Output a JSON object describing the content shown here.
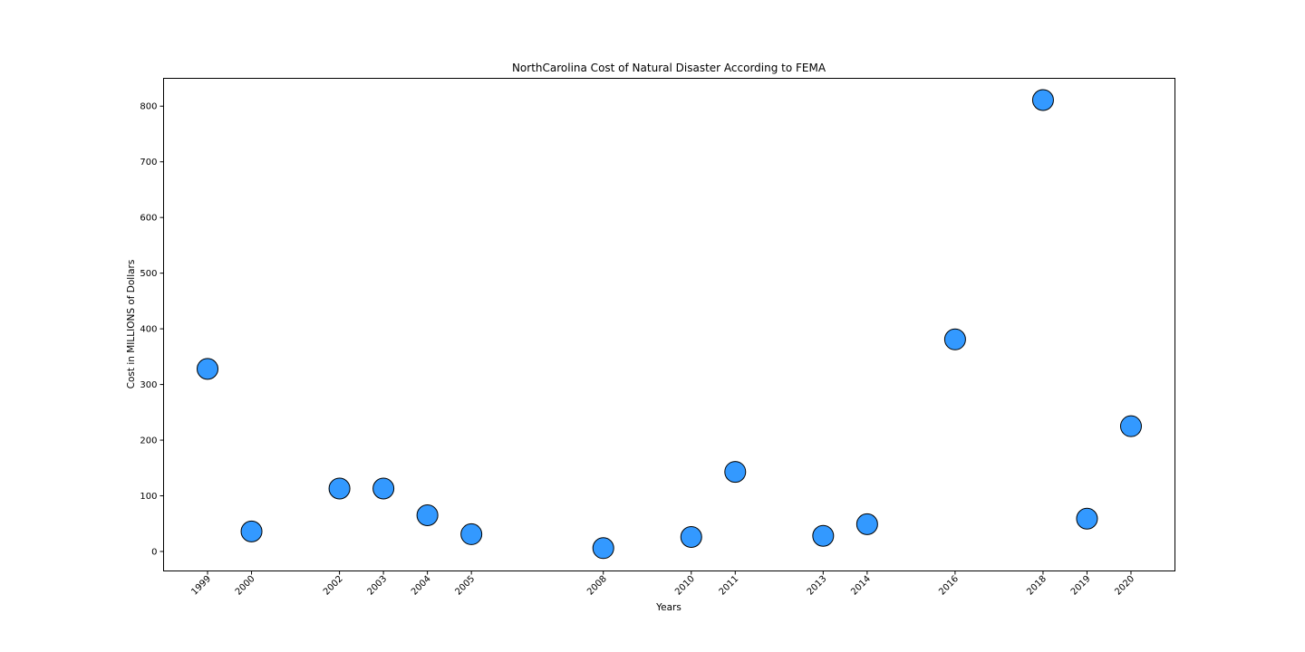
{
  "chart_data": {
    "type": "scatter",
    "title": "NorthCarolina Cost of Natural Disaster According to FEMA",
    "xlabel": "Years",
    "ylabel": "Cost in MILLIONS of Dollars",
    "xlim": [
      1998,
      2021
    ],
    "ylim": [
      -35,
      850
    ],
    "x_ticks": [
      1999,
      2000,
      2002,
      2003,
      2004,
      2005,
      2008,
      2010,
      2011,
      2013,
      2014,
      2016,
      2018,
      2019,
      2020
    ],
    "y_ticks": [
      0,
      100,
      200,
      300,
      400,
      500,
      600,
      700,
      800
    ],
    "grid": false,
    "marker_color": "#3399FF",
    "marker_edge_color": "#000000",
    "points": [
      {
        "x": 1999,
        "y": 328
      },
      {
        "x": 2000,
        "y": 36
      },
      {
        "x": 2002,
        "y": 113
      },
      {
        "x": 2003,
        "y": 113
      },
      {
        "x": 2004,
        "y": 65
      },
      {
        "x": 2005,
        "y": 31
      },
      {
        "x": 2008,
        "y": 6
      },
      {
        "x": 2010,
        "y": 26
      },
      {
        "x": 2011,
        "y": 143
      },
      {
        "x": 2013,
        "y": 28
      },
      {
        "x": 2014,
        "y": 49
      },
      {
        "x": 2016,
        "y": 381
      },
      {
        "x": 2018,
        "y": 811
      },
      {
        "x": 2019,
        "y": 59
      },
      {
        "x": 2020,
        "y": 225
      }
    ]
  }
}
